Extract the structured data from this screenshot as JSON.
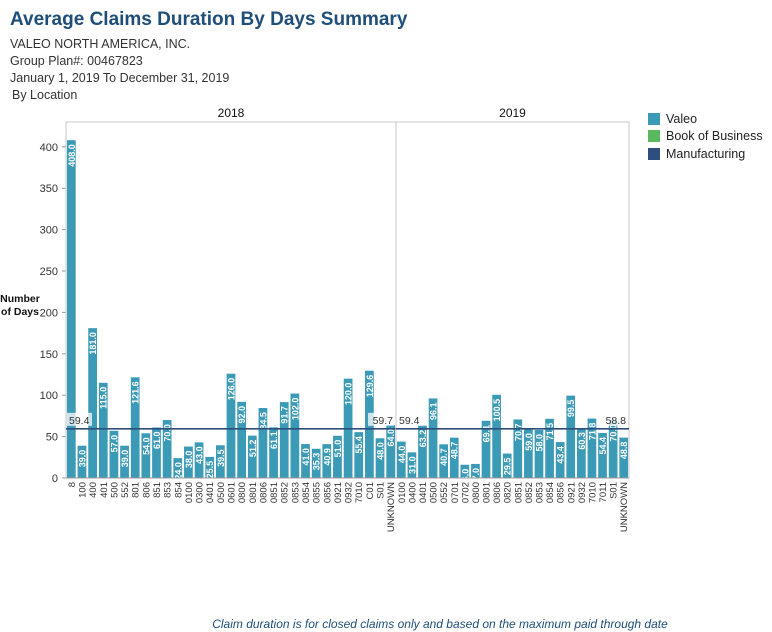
{
  "header": {
    "title": "Average Claims Duration By Days Summary",
    "company": "VALEO NORTH AMERICA, INC.",
    "group_plan": "Group Plan#: 00467823",
    "date_range": "January 1, 2019 To December 31, 2019",
    "breakdown": "By Location"
  },
  "footnote": "Claim duration is for closed claims only and based on the maximum paid through date",
  "colors": {
    "valeo": "#3b9ab6",
    "book_of_business": "#5cb85c",
    "manufacturing": "#2e4e7e"
  },
  "legend": [
    {
      "label": "Valeo",
      "color": "#3b9ab6"
    },
    {
      "label": "Book of Business",
      "color": "#5cb85c"
    },
    {
      "label": "Manufacturing",
      "color": "#2e4e7e"
    }
  ],
  "chart_data": {
    "type": "bar",
    "ylabel_line1": "Number",
    "ylabel_line2": "of Days",
    "ylim": [
      0,
      430
    ],
    "yticks": [
      0,
      50,
      100,
      150,
      200,
      250,
      300,
      350,
      400
    ],
    "grid": false,
    "legend_position": "right",
    "panels": [
      {
        "title": "2018",
        "reference_label": "59.4",
        "reference_value": 59.4,
        "categories": [
          "8",
          "100",
          "400",
          "401",
          "500",
          "552",
          "801",
          "806",
          "851",
          "853",
          "854",
          "0100",
          "0300",
          "0401",
          "0500",
          "0601",
          "0800",
          "0801",
          "0806",
          "0851",
          "0852",
          "0853",
          "0854",
          "0855",
          "0856",
          "0921",
          "0932",
          "7010",
          "C01",
          "S01",
          "UNKNOWN"
        ],
        "values": [
          408.0,
          39.0,
          181.0,
          115.0,
          57.0,
          39.0,
          121.6,
          54.0,
          61.0,
          70.0,
          24.0,
          38.0,
          43.0,
          25.5,
          39.5,
          126.0,
          92.0,
          51.2,
          84.5,
          61.1,
          91.7,
          102.0,
          41.0,
          35.3,
          40.9,
          51.0,
          120.0,
          55.4,
          129.6,
          48.0,
          64.0
        ],
        "end_label": "59.7"
      },
      {
        "title": "2019",
        "reference_label": "59.4",
        "reference_value": 59.4,
        "categories": [
          "0100",
          "0400",
          "0401",
          "0500",
          "0552",
          "0701",
          "0702",
          "0800",
          "0801",
          "0806",
          "0820",
          "0851",
          "0852",
          "0853",
          "0854",
          "0856",
          "0921",
          "0932",
          "7010",
          "7011",
          "S01",
          "UNKNOWN"
        ],
        "values": [
          44.0,
          31.0,
          63.2,
          96.1,
          40.7,
          48.7,
          16.0,
          17.0,
          69.1,
          100.5,
          29.5,
          70.7,
          59.0,
          58.0,
          71.5,
          43.4,
          99.5,
          60.3,
          71.8,
          54.4,
          70.0,
          48.8
        ],
        "end_label": "58.8"
      }
    ]
  }
}
